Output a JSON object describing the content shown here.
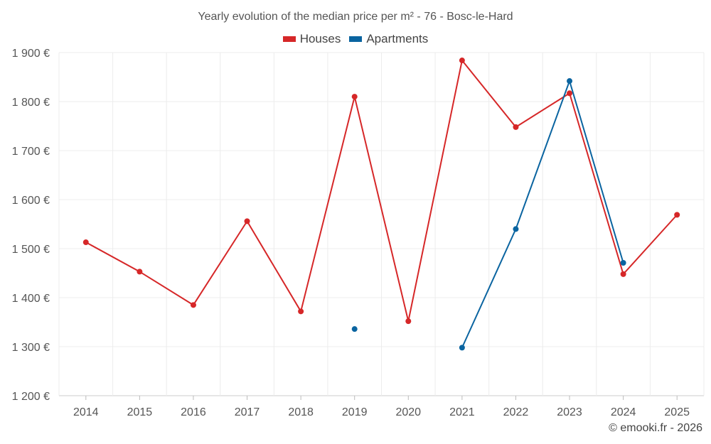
{
  "chart_data": {
    "type": "line",
    "title": "Yearly evolution of the median price per m² - 76 - Bosc-le-Hard",
    "categories": [
      "2014",
      "2015",
      "2016",
      "2017",
      "2018",
      "2019",
      "2020",
      "2021",
      "2022",
      "2023",
      "2024",
      "2025"
    ],
    "y_ticks": [
      "1 200 €",
      "1 300 €",
      "1 400 €",
      "1 500 €",
      "1 600 €",
      "1 700 €",
      "1 800 €",
      "1 900 €"
    ],
    "ylim": [
      1200,
      1900
    ],
    "grid": true,
    "legend_position": "top-center",
    "series": [
      {
        "name": "Houses",
        "color": "#d62728",
        "values": [
          1513,
          1453,
          1385,
          1556,
          1372,
          1810,
          1352,
          1884,
          1748,
          1817,
          1448,
          1569
        ]
      },
      {
        "name": "Apartments",
        "color": "#0a64a0",
        "values": [
          null,
          null,
          null,
          null,
          null,
          1336,
          null,
          1298,
          1540,
          1842,
          1471,
          null
        ]
      }
    ]
  },
  "credit": "© emooki.fr - 2026"
}
